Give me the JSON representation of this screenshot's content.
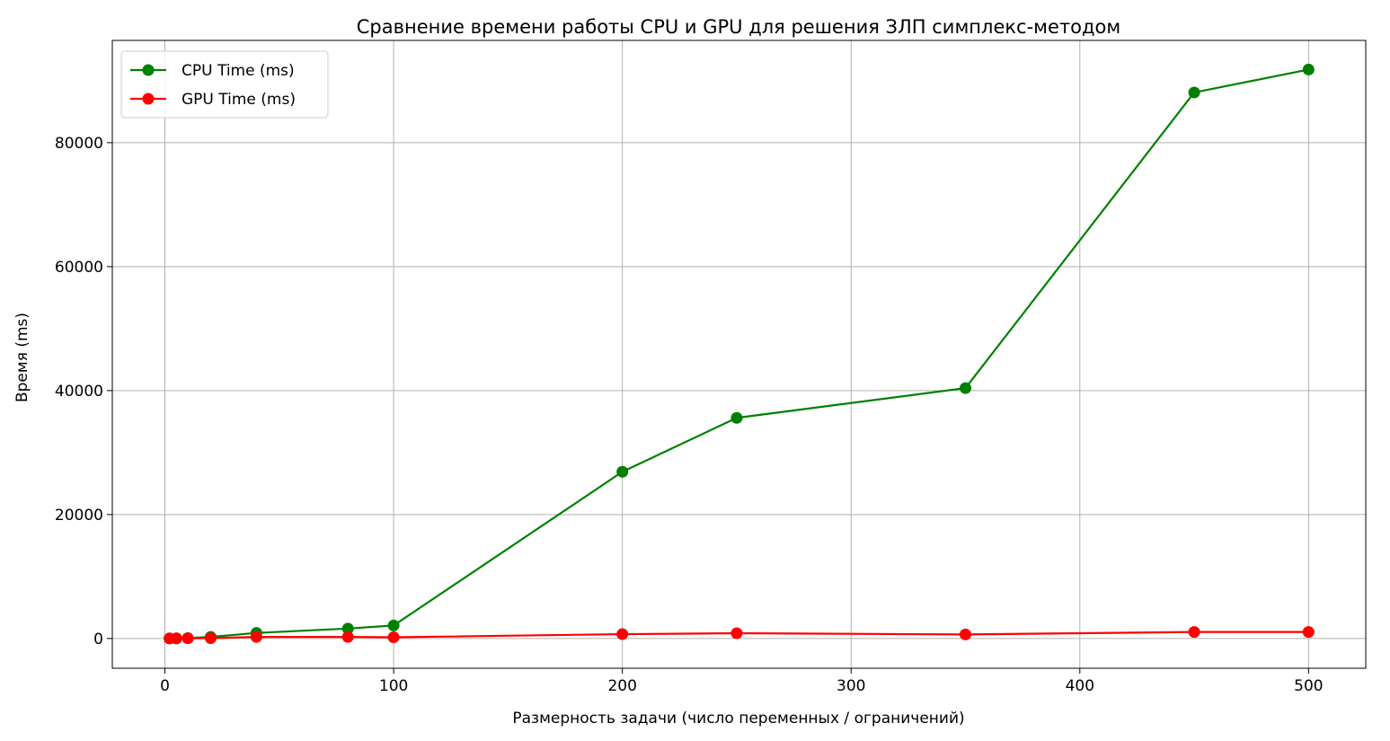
{
  "chart_data": {
    "type": "line",
    "title": "Сравнение времени работы CPU и GPU для решения ЗЛП симплекс-методом",
    "xlabel": "Размерность задачи (число переменных / ограничений)",
    "ylabel": "Время (ms)",
    "xlim": [
      -23,
      525
    ],
    "ylim": [
      -4800,
      96500
    ],
    "xticks": [
      0,
      100,
      200,
      300,
      400,
      500
    ],
    "yticks": [
      0,
      20000,
      40000,
      60000,
      80000
    ],
    "grid": true,
    "legend_position": "top-left",
    "series": [
      {
        "name": "CPU Time (ms)",
        "color": "#008000",
        "marker": "circle",
        "x": [
          2,
          5,
          10,
          20,
          40,
          80,
          100,
          200,
          250,
          350,
          450,
          500
        ],
        "y": [
          5,
          20,
          60,
          250,
          900,
          1600,
          2100,
          26900,
          35600,
          40400,
          88100,
          91800
        ]
      },
      {
        "name": "GPU Time (ms)",
        "color": "#ff0000",
        "marker": "circle",
        "x": [
          2,
          5,
          10,
          20,
          40,
          80,
          100,
          200,
          250,
          350,
          450,
          500
        ],
        "y": [
          10,
          20,
          30,
          50,
          250,
          250,
          200,
          700,
          850,
          650,
          1050,
          1050
        ]
      }
    ]
  }
}
